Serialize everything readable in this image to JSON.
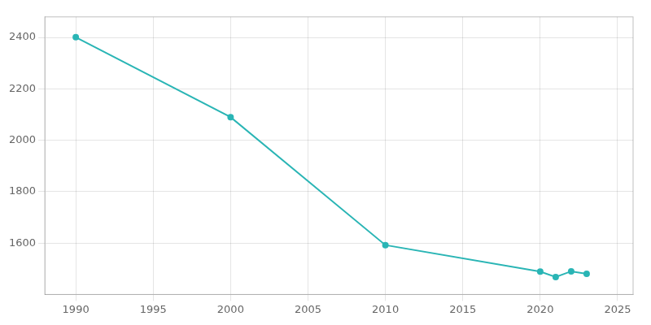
{
  "chart_data": {
    "type": "line",
    "x": [
      1990,
      2000,
      2010,
      2020,
      2021,
      2022,
      2023
    ],
    "values": [
      2401,
      2090,
      1592,
      1489,
      1468,
      1490,
      1480
    ],
    "color": "#2ab5b5",
    "marker": "circle",
    "xlim": [
      1988,
      2026
    ],
    "ylim": [
      1400,
      2480
    ],
    "xticks": [
      1990,
      1995,
      2000,
      2005,
      2010,
      2015,
      2020,
      2025
    ],
    "yticks": [
      1600,
      1800,
      2000,
      2200,
      2400
    ],
    "grid": true
  }
}
